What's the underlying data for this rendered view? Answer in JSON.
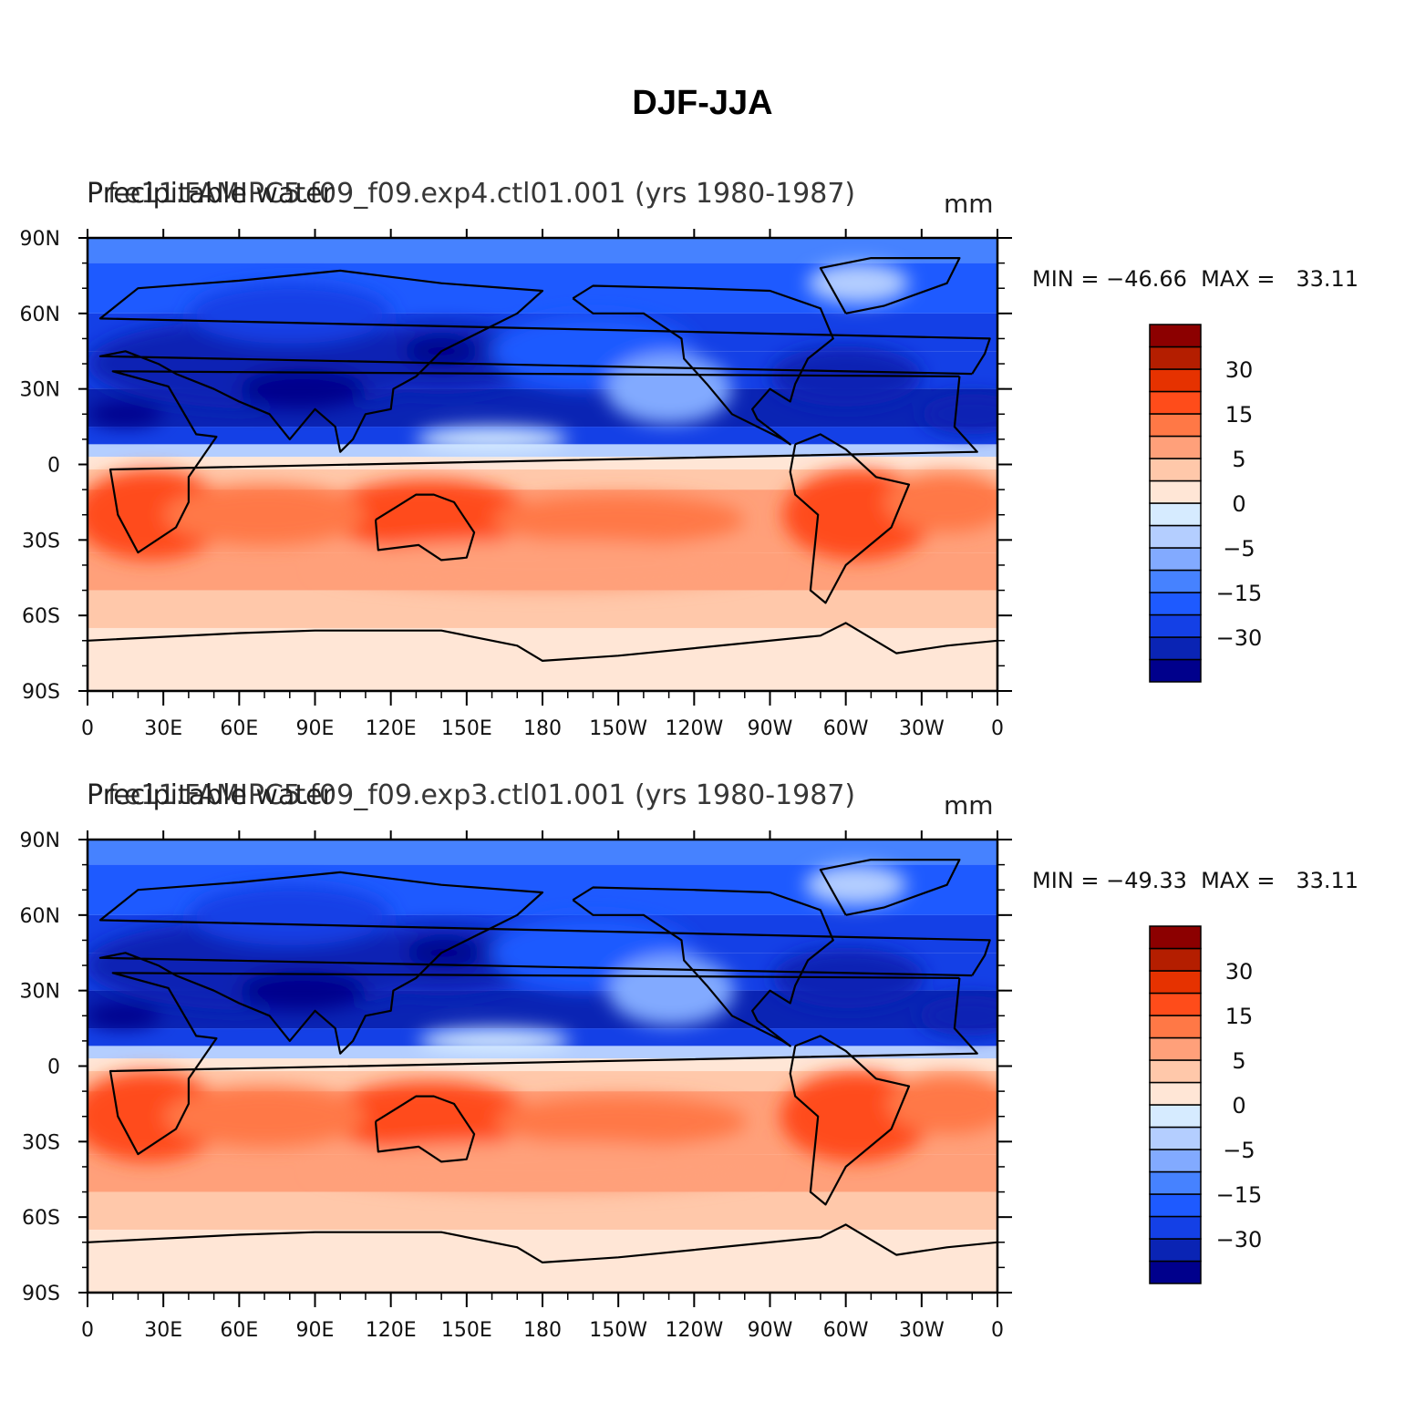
{
  "figure": {
    "title": "DJF-JJA"
  },
  "panels": [
    {
      "left_title_a": "Precipitable water",
      "left_title_b": "f.e11.FAMIPC5.f09_f09.exp4.ctl01.001 (yrs 1980-1987)",
      "units": "mm",
      "min_max": "MIN = −46.66  MAX =   33.11"
    },
    {
      "left_title_a": "Precipitable water",
      "left_title_b": "f.e11.FAMIPC5.f09_f09.exp3.ctl01.001 (yrs 1980-1987)",
      "units": "mm",
      "min_max": "MIN = −49.33  MAX =   33.11"
    }
  ],
  "axes": {
    "lat_ticks": [
      "90N",
      "60N",
      "30N",
      "0",
      "30S",
      "60S",
      "90S"
    ],
    "lon_ticks": [
      "0",
      "30E",
      "60E",
      "90E",
      "120E",
      "150E",
      "180",
      "150W",
      "120W",
      "90W",
      "60W",
      "30W",
      "0"
    ]
  },
  "colorbar": {
    "colors": [
      "#00008c",
      "#0a24b4",
      "#1440e6",
      "#1e5aff",
      "#4682ff",
      "#82aaff",
      "#b4ceff",
      "#d6ebff",
      "#ffe6d6",
      "#ffc8aa",
      "#ffa07a",
      "#ff7846",
      "#ff4c1a",
      "#e63200",
      "#b41e00",
      "#8c0000"
    ],
    "labels": [
      "30",
      "15",
      "5",
      "0",
      "−5",
      "−15",
      "−30"
    ]
  },
  "chart_data": [
    {
      "type": "heatmap",
      "title": "DJF-JJA",
      "subtitle": "f.e11.FAMIPC5.f09_f09.exp4.ctl01.001 (yrs 1980-1987)",
      "variable": "Precipitable water",
      "units": "mm",
      "min": -46.66,
      "max": 33.11,
      "xlim": [
        0,
        360
      ],
      "ylim": [
        -90,
        90
      ]
    },
    {
      "type": "heatmap",
      "title": "DJF-JJA",
      "subtitle": "f.e11.FAMIPC5.f09_f09.exp3.ctl01.001 (yrs 1980-1987)",
      "variable": "Precipitable water",
      "units": "mm",
      "min": -49.33,
      "max": 33.11,
      "xlim": [
        0,
        360
      ],
      "ylim": [
        -90,
        90
      ]
    }
  ]
}
